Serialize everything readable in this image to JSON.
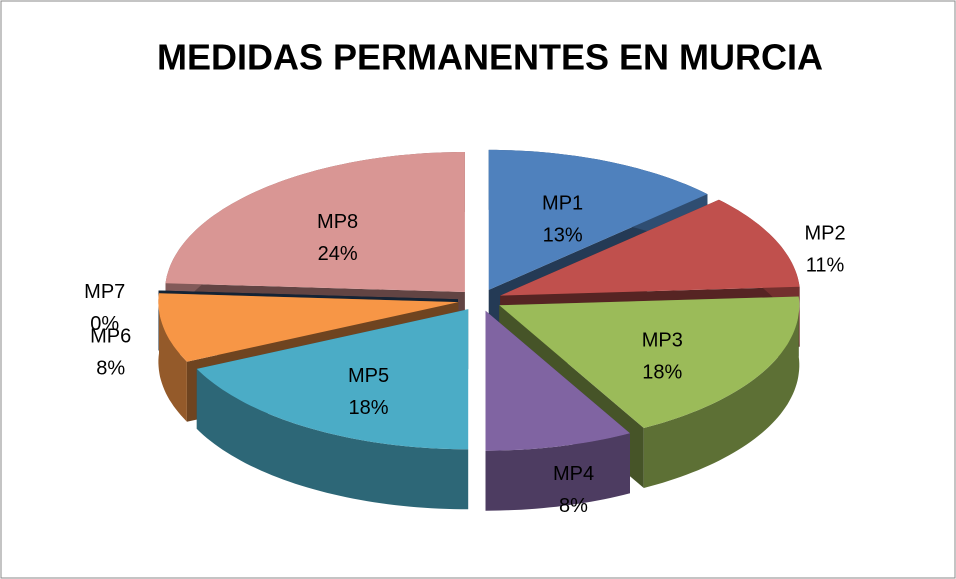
{
  "chart_data": {
    "type": "pie",
    "title": "MEDIDAS PERMANENTES EN MURCIA",
    "categories": [
      "MP1",
      "MP2",
      "MP3",
      "MP4",
      "MP5",
      "MP6",
      "MP7",
      "MP8"
    ],
    "values": [
      13,
      11,
      18,
      8,
      18,
      8,
      0,
      24
    ],
    "value_labels": [
      "13%",
      "11%",
      "18%",
      "8%",
      "18%",
      "8%",
      "0%",
      "24%"
    ],
    "colors": [
      "#4f81bd",
      "#c0504d",
      "#9bbb59",
      "#8064a2",
      "#4bacc6",
      "#f79646",
      "#2c4d75",
      "#d99694"
    ]
  }
}
